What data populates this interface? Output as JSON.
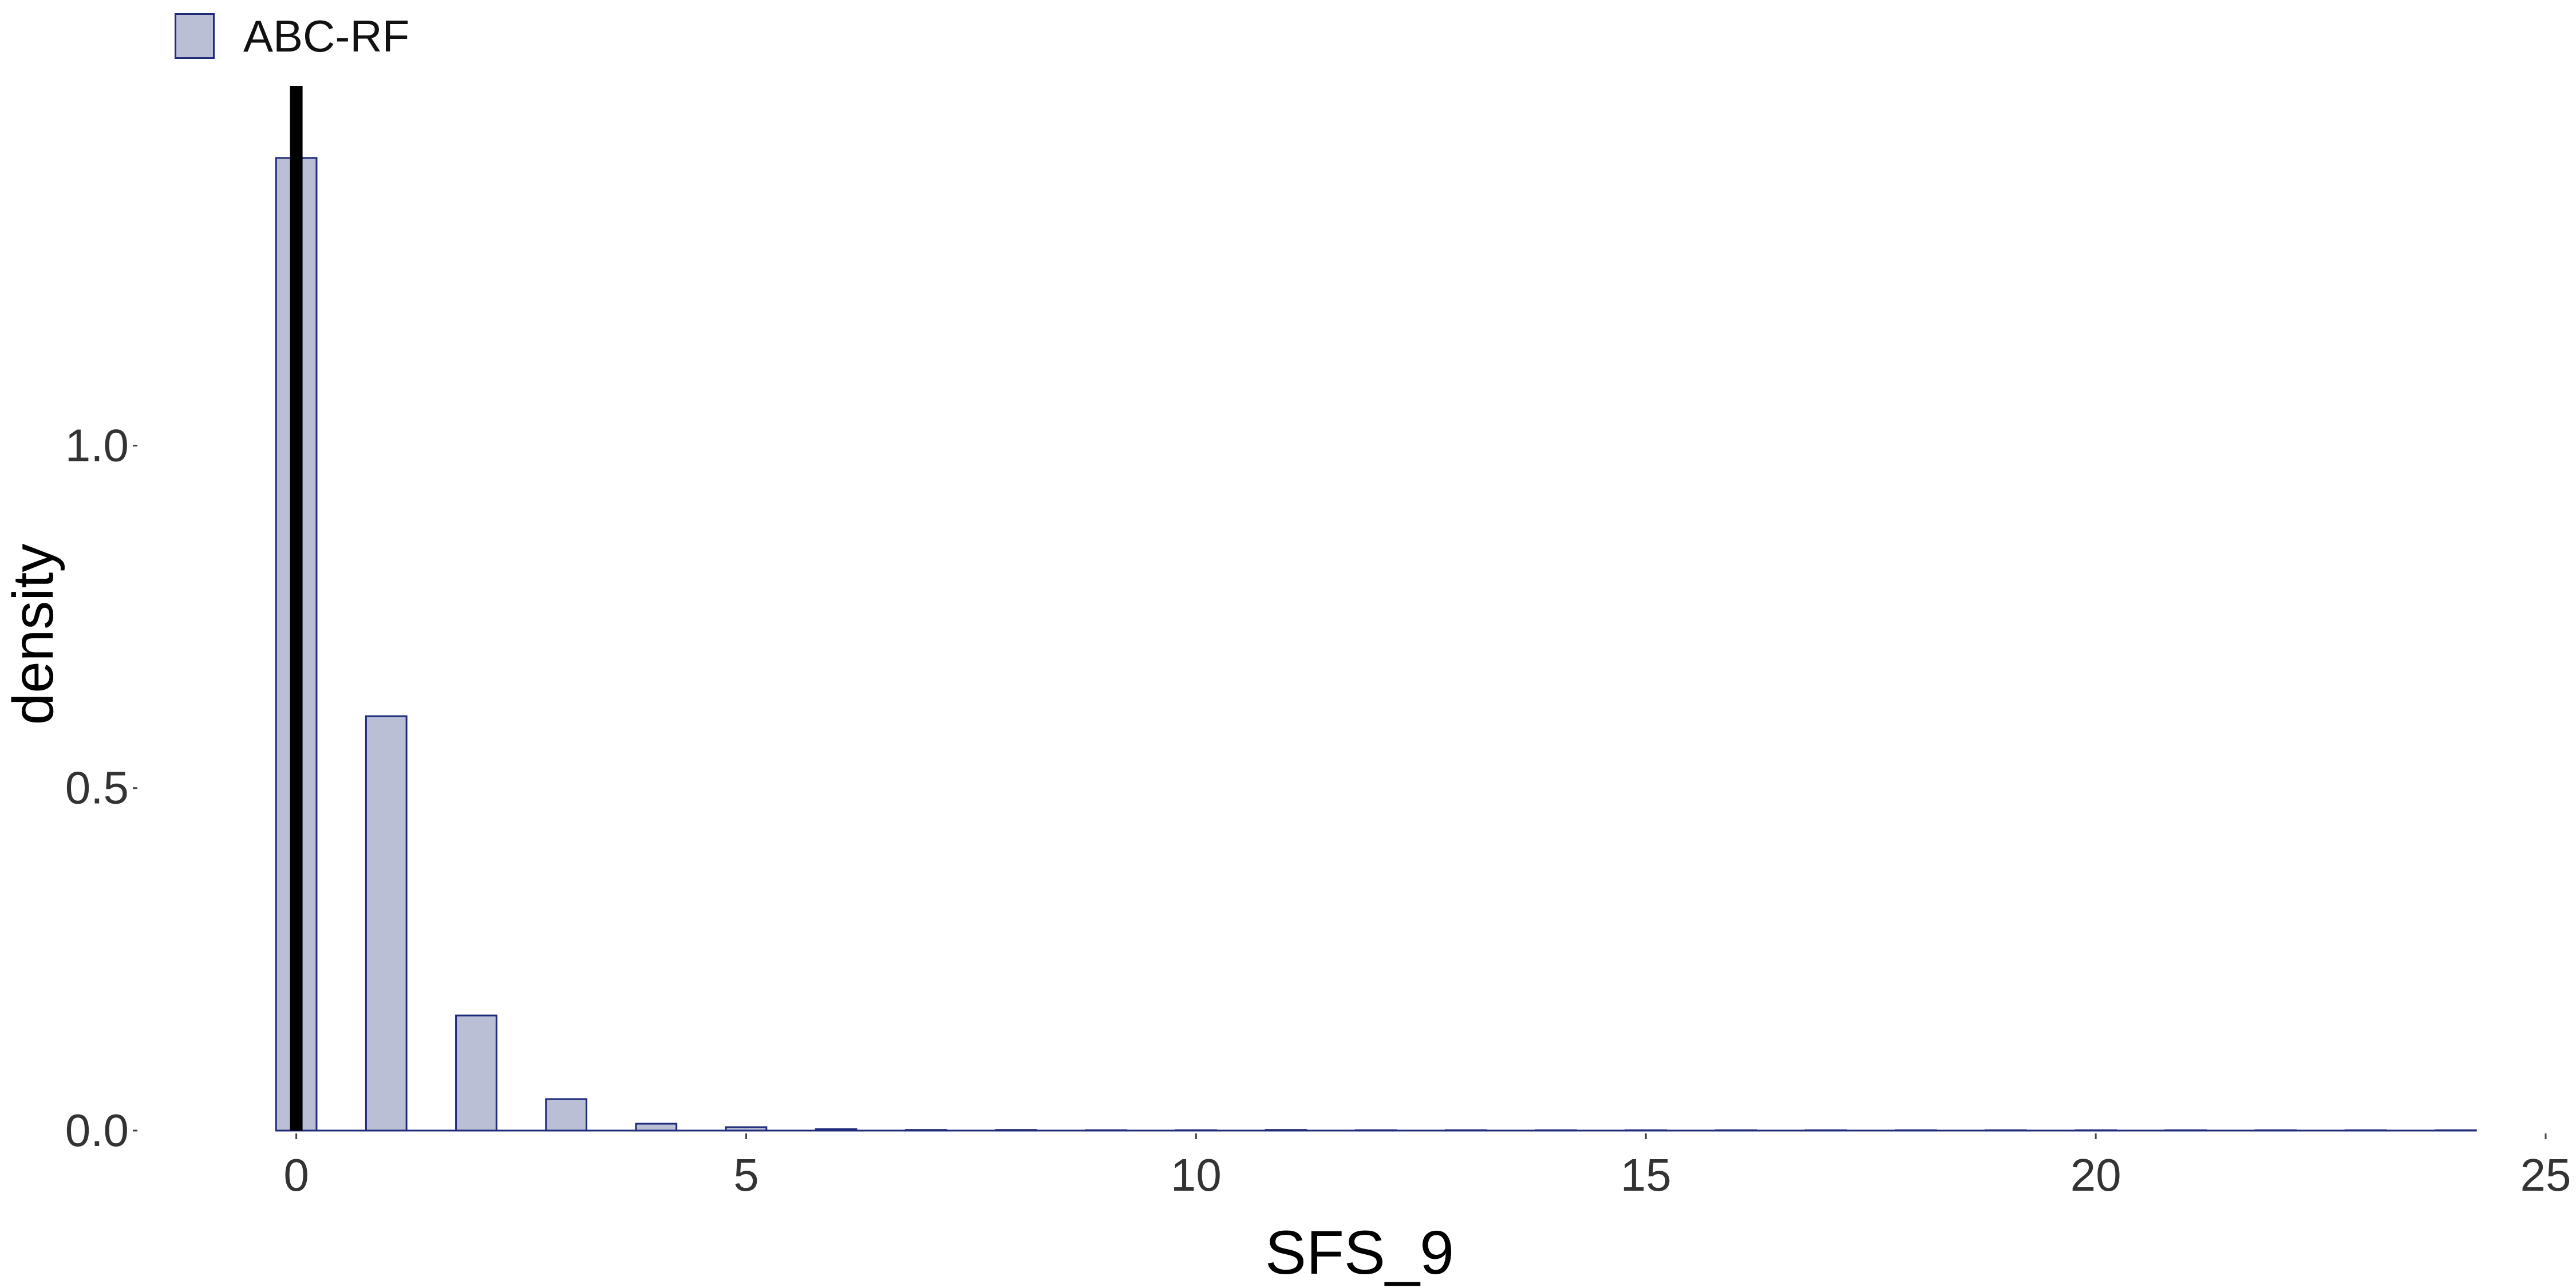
{
  "chart_data": {
    "type": "bar",
    "title": "",
    "xlabel": "SFS_9",
    "ylabel": "density",
    "xlim": [
      -0.5,
      25
    ],
    "ylim": [
      0,
      1.45
    ],
    "x_ticks": [
      0,
      5,
      10,
      15,
      20,
      25
    ],
    "y_ticks": [
      0.0,
      0.5,
      1.0
    ],
    "y_tick_labels": [
      "0.0",
      "0.5",
      "1.0"
    ],
    "grid": false,
    "legend_position": "top-left",
    "series": [
      {
        "name": "ABC-RF",
        "fill_color": "#babfd6",
        "edge_color": "#1f2a7a",
        "x": [
          0,
          1,
          2,
          3,
          4,
          5,
          6,
          7,
          8,
          9,
          10,
          11,
          12,
          13,
          14,
          15,
          16,
          17,
          18,
          19,
          20,
          21,
          22,
          23,
          24
        ],
        "values": [
          1.42,
          0.605,
          0.168,
          0.046,
          0.01,
          0.005,
          0.002,
          0.001,
          0.001,
          0.0005,
          0.0005,
          0.001,
          0.0005,
          0.0005,
          0.0003,
          0.0002,
          0.0002,
          0.0002,
          0.0002,
          0.0002,
          0.0002,
          0.0002,
          0.0002,
          0.0002,
          0.0002
        ]
      }
    ],
    "reference_line": {
      "x": 0,
      "color": "#000000"
    }
  }
}
